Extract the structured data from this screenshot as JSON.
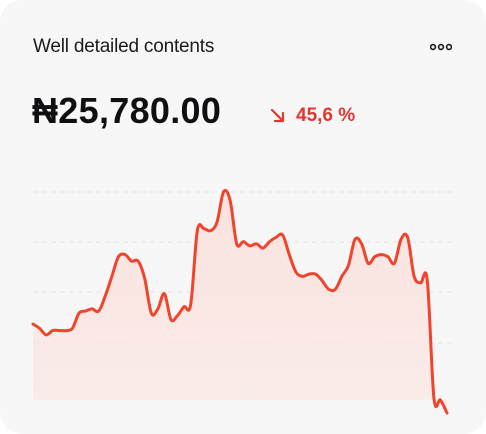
{
  "card": {
    "title": "Well detailed contents",
    "menu_icon": "more-horizontal-icon"
  },
  "balance": {
    "amount": "₦25,780.00"
  },
  "change": {
    "direction_icon": "arrow-down-right-icon",
    "value": "45,6 %",
    "color": "#e2372b"
  },
  "colors": {
    "line": "#f0442c",
    "fill": "#fbe3de",
    "grid": "#e4e4e6",
    "card_bg": "#f7f7f8"
  },
  "chart_data": {
    "type": "area",
    "grid": true,
    "y_range": [
      0,
      1
    ],
    "values": [
      0.35,
      0.33,
      0.3,
      0.32,
      0.32,
      0.32,
      0.33,
      0.4,
      0.41,
      0.42,
      0.41,
      0.48,
      0.57,
      0.66,
      0.67,
      0.64,
      0.64,
      0.56,
      0.4,
      0.42,
      0.49,
      0.37,
      0.39,
      0.43,
      0.44,
      0.78,
      0.79,
      0.78,
      0.82,
      0.96,
      0.92,
      0.72,
      0.73,
      0.71,
      0.72,
      0.7,
      0.73,
      0.75,
      0.76,
      0.67,
      0.59,
      0.57,
      0.58,
      0.58,
      0.55,
      0.51,
      0.51,
      0.57,
      0.62,
      0.74,
      0.72,
      0.63,
      0.66,
      0.67,
      0.66,
      0.63,
      0.74,
      0.75,
      0.57,
      0.54,
      0.55,
      0.01,
      0.0,
      -0.06
    ]
  }
}
